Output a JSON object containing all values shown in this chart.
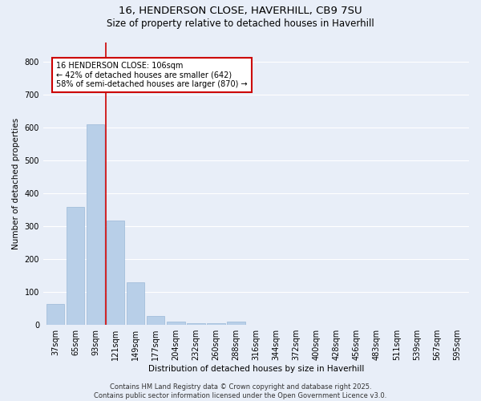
{
  "title_line1": "16, HENDERSON CLOSE, HAVERHILL, CB9 7SU",
  "title_line2": "Size of property relative to detached houses in Haverhill",
  "xlabel": "Distribution of detached houses by size in Haverhill",
  "ylabel": "Number of detached properties",
  "categories": [
    "37sqm",
    "65sqm",
    "93sqm",
    "121sqm",
    "149sqm",
    "177sqm",
    "204sqm",
    "232sqm",
    "260sqm",
    "288sqm",
    "316sqm",
    "344sqm",
    "372sqm",
    "400sqm",
    "428sqm",
    "456sqm",
    "483sqm",
    "511sqm",
    "539sqm",
    "567sqm",
    "595sqm"
  ],
  "values": [
    65,
    358,
    610,
    317,
    130,
    27,
    10,
    6,
    6,
    10,
    0,
    0,
    0,
    0,
    0,
    0,
    0,
    0,
    0,
    0,
    0
  ],
  "bar_color": "#b8cfe8",
  "bar_edge_color": "#9ab8d8",
  "vline_color": "#cc0000",
  "annotation_text": "16 HENDERSON CLOSE: 106sqm\n← 42% of detached houses are smaller (642)\n58% of semi-detached houses are larger (870) →",
  "annotation_box_color": "#ffffff",
  "annotation_box_edge_color": "#cc0000",
  "ylim": [
    0,
    860
  ],
  "yticks": [
    0,
    100,
    200,
    300,
    400,
    500,
    600,
    700,
    800
  ],
  "background_color": "#e8eef8",
  "grid_color": "#ffffff",
  "footer_text": "Contains HM Land Registry data © Crown copyright and database right 2025.\nContains public sector information licensed under the Open Government Licence v3.0.",
  "title_fontsize": 9.5,
  "subtitle_fontsize": 8.5,
  "axis_label_fontsize": 7.5,
  "tick_fontsize": 7,
  "annotation_fontsize": 7,
  "footer_fontsize": 6
}
